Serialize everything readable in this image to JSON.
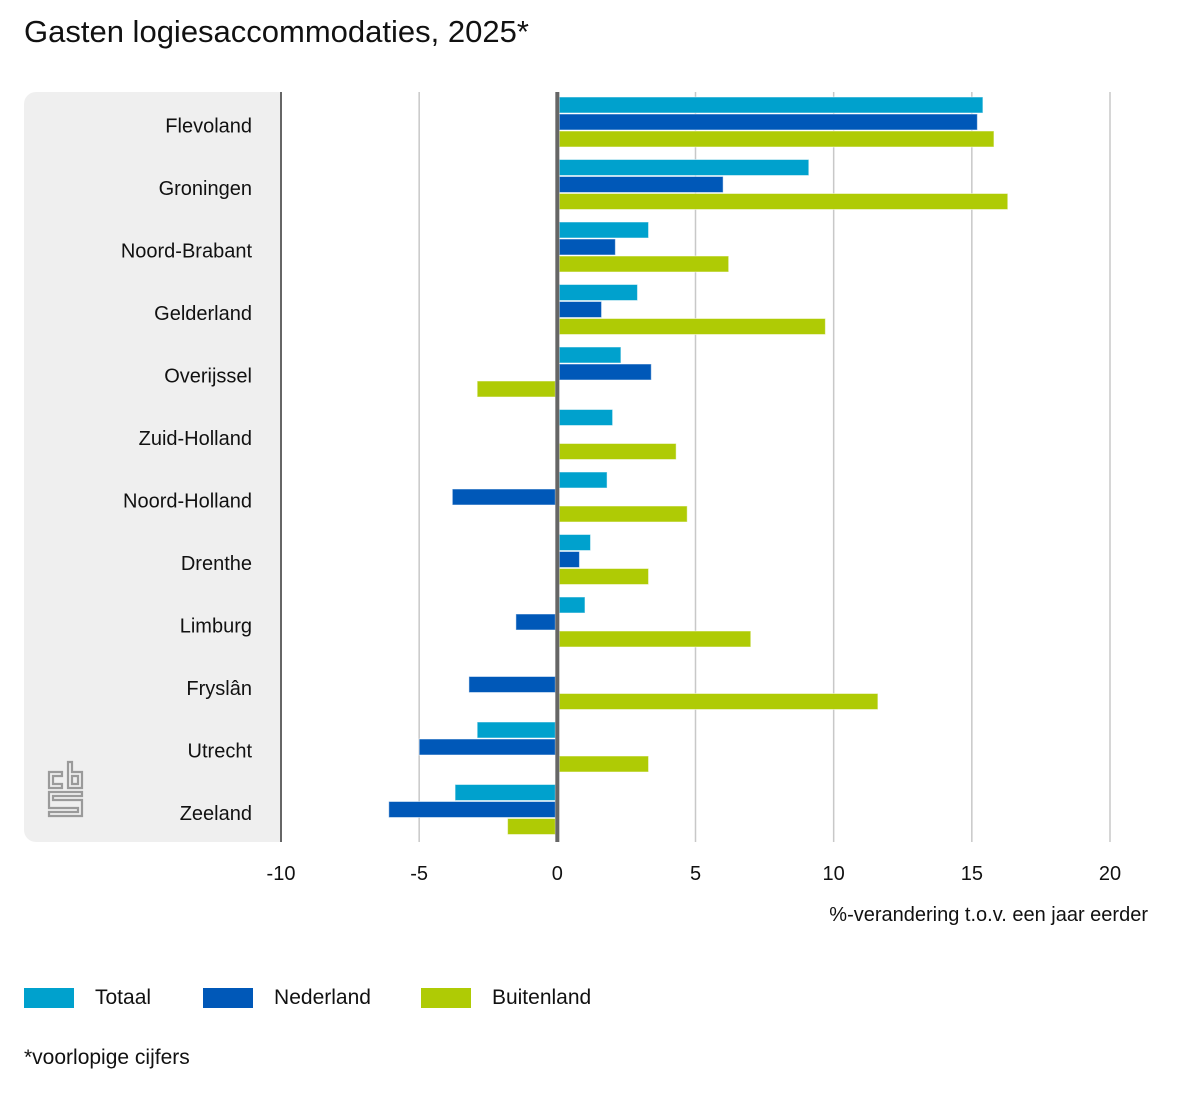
{
  "title": "Gasten logiesaccommodaties, 2025*",
  "footnote": "*voorlopige cijfers",
  "logo": "cbs-logo-icon",
  "chart_data": {
    "type": "bar",
    "orientation": "horizontal",
    "title": "Gasten logiesaccommodaties, 2025*",
    "xlabel": "%-verandering t.o.v. een jaar eerder",
    "ylabel": "",
    "xlim": [
      -10,
      20
    ],
    "xticks": [
      -10,
      -5,
      0,
      5,
      10,
      15,
      20
    ],
    "xtick_labels": [
      "-10",
      "-5",
      "0",
      "5",
      "10",
      "15",
      "20"
    ],
    "grid": "vertical",
    "legend_position": "bottom-left",
    "categories": [
      "Flevoland",
      "Groningen",
      "Noord-Brabant",
      "Gelderland",
      "Overijssel",
      "Zuid-Holland",
      "Noord-Holland",
      "Drenthe",
      "Limburg",
      "Fryslân",
      "Utrecht",
      "Zeeland"
    ],
    "series": [
      {
        "name": "Totaal",
        "color": "#00a1cd",
        "values": [
          15.4,
          9.1,
          3.3,
          2.9,
          2.3,
          2.0,
          1.8,
          1.2,
          1.0,
          0.0,
          -2.9,
          -3.7
        ]
      },
      {
        "name": "Nederland",
        "color": "#0058b8",
        "values": [
          15.2,
          6.0,
          2.1,
          1.6,
          3.4,
          0.0,
          -3.8,
          0.8,
          -1.5,
          -3.2,
          -5.0,
          -6.1
        ]
      },
      {
        "name": "Buitenland",
        "color": "#afcb05",
        "values": [
          15.8,
          16.3,
          6.2,
          9.7,
          -2.9,
          4.3,
          4.7,
          3.3,
          7.0,
          11.6,
          3.3,
          -1.8
        ]
      }
    ]
  }
}
